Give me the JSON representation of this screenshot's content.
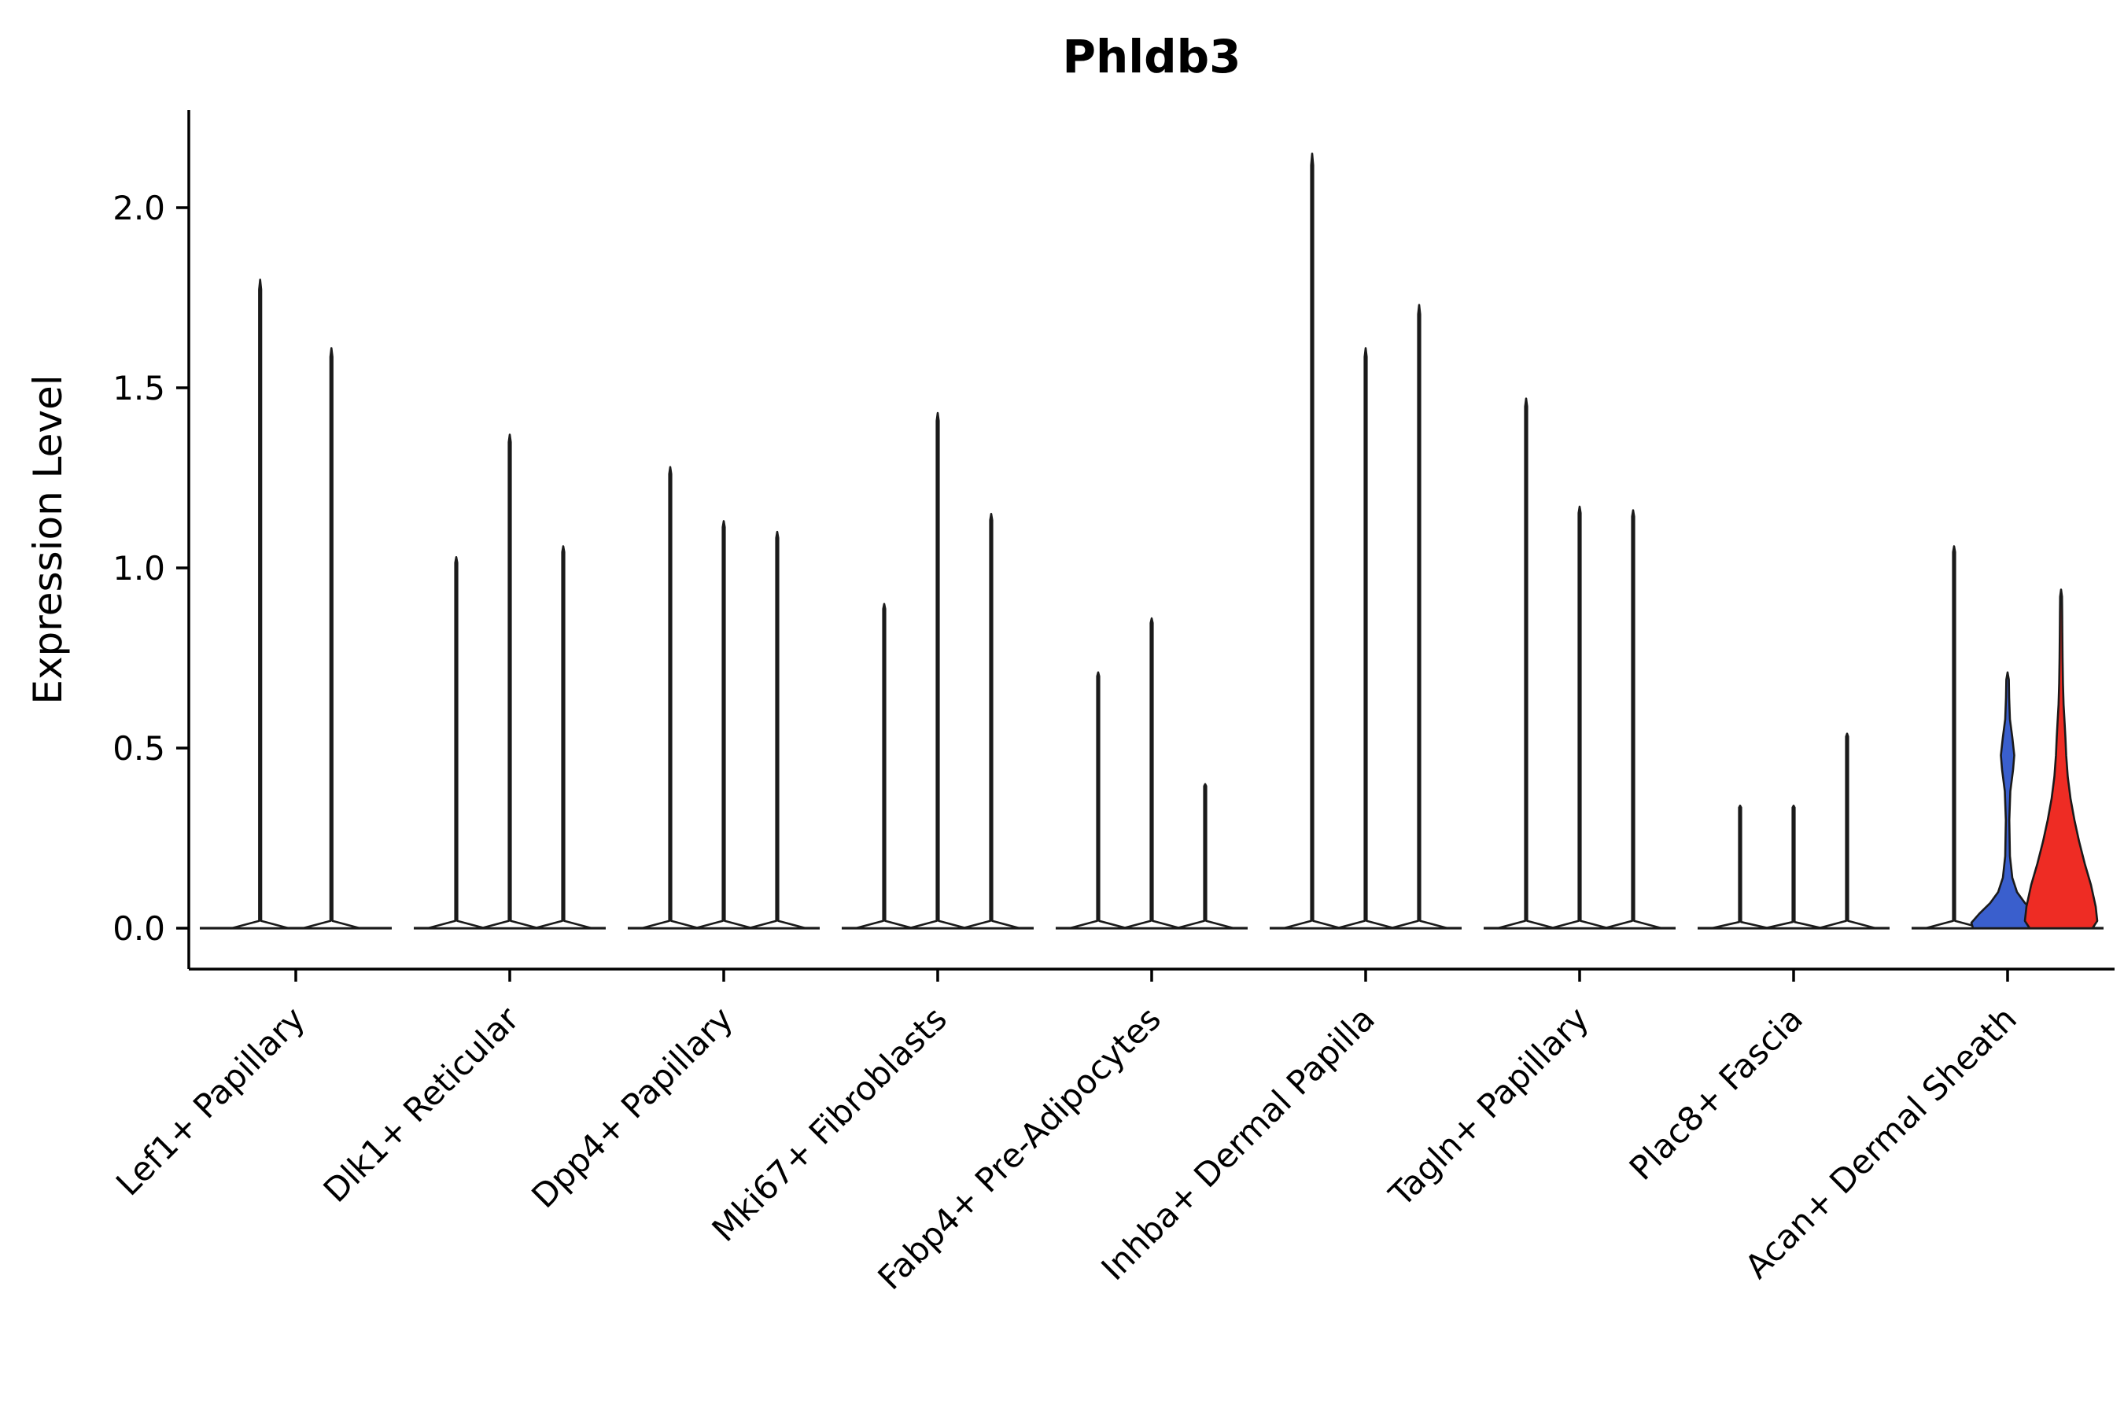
{
  "page": {
    "background": "#ffffff"
  },
  "chart_data": {
    "type": "violin",
    "title": "Phldb3",
    "ylabel": "Expression Level",
    "xlabel": "",
    "ylim": [
      0,
      2.25
    ],
    "yticks": [
      0,
      0.5,
      1.0,
      1.5,
      2.0
    ],
    "ytick_labels": [
      "0.0",
      "0.5",
      "1.0",
      "1.5",
      "2.0"
    ],
    "grid": false,
    "legend": "none",
    "categories": [
      {
        "label": "Lef1+ Papillary",
        "violins": [
          {
            "max": 1.8
          },
          {
            "max": 1.61
          }
        ]
      },
      {
        "label": "Dlk1+ Reticular",
        "violins": [
          {
            "max": 1.03
          },
          {
            "max": 1.37
          },
          {
            "max": 1.06
          }
        ]
      },
      {
        "label": "Dpp4+ Papillary",
        "violins": [
          {
            "max": 1.28
          },
          {
            "max": 1.13
          },
          {
            "max": 1.1
          }
        ]
      },
      {
        "label": "Mki67+ Fibroblasts",
        "violins": [
          {
            "max": 0.9
          },
          {
            "max": 1.43
          },
          {
            "max": 1.15
          }
        ]
      },
      {
        "label": "Fabp4+ Pre-Adipocytes",
        "violins": [
          {
            "max": 0.71
          },
          {
            "max": 0.86
          },
          {
            "max": 0.4
          }
        ]
      },
      {
        "label": "Inhba+ Dermal Papilla",
        "violins": [
          {
            "max": 2.15
          },
          {
            "max": 1.61
          },
          {
            "max": 1.73
          }
        ]
      },
      {
        "label": "Tagln+ Papillary",
        "violins": [
          {
            "max": 1.47
          },
          {
            "max": 1.17
          },
          {
            "max": 1.16
          }
        ]
      },
      {
        "label": "Plac8+ Fascia",
        "violins": [
          {
            "max": 0.34
          },
          {
            "max": 0.34
          },
          {
            "max": 0.54
          }
        ]
      },
      {
        "label": "Acan+ Dermal Sheath",
        "violins": [
          {
            "max": 1.06
          },
          {
            "max": 0.71,
            "fill": "#3A5FCD",
            "profile": [
              [
                0,
                44
              ],
              [
                0.015,
                46
              ],
              [
                0.04,
                36
              ],
              [
                0.07,
                22
              ],
              [
                0.1,
                12
              ],
              [
                0.14,
                6
              ],
              [
                0.2,
                3
              ],
              [
                0.3,
                2.2
              ],
              [
                0.38,
                3.5
              ],
              [
                0.44,
                7
              ],
              [
                0.48,
                8.5
              ],
              [
                0.53,
                6
              ],
              [
                0.58,
                3
              ],
              [
                0.64,
                2
              ],
              [
                0.69,
                1.6
              ],
              [
                0.71,
                0
              ]
            ]
          },
          {
            "max": 0.94,
            "fill": "#EE2C24",
            "profile": [
              [
                0,
                40
              ],
              [
                0.02,
                46
              ],
              [
                0.06,
                44
              ],
              [
                0.12,
                38
              ],
              [
                0.18,
                30
              ],
              [
                0.24,
                23
              ],
              [
                0.3,
                17
              ],
              [
                0.36,
                12
              ],
              [
                0.42,
                8.5
              ],
              [
                0.48,
                6.5
              ],
              [
                0.53,
                5.5
              ],
              [
                0.57,
                4.5
              ],
              [
                0.62,
                3.2
              ],
              [
                0.68,
                2.4
              ],
              [
                0.75,
                1.9
              ],
              [
                0.82,
                1.6
              ],
              [
                0.88,
                1.4
              ],
              [
                0.92,
                1.2
              ],
              [
                0.94,
                0
              ]
            ]
          }
        ]
      }
    ],
    "style": {
      "violin_fill": "#ffffff",
      "violin_stroke": "#1a1a1a",
      "axis_color": "#000000",
      "highlight_blue": "#3A5FCD",
      "highlight_red": "#EE2C24"
    }
  }
}
